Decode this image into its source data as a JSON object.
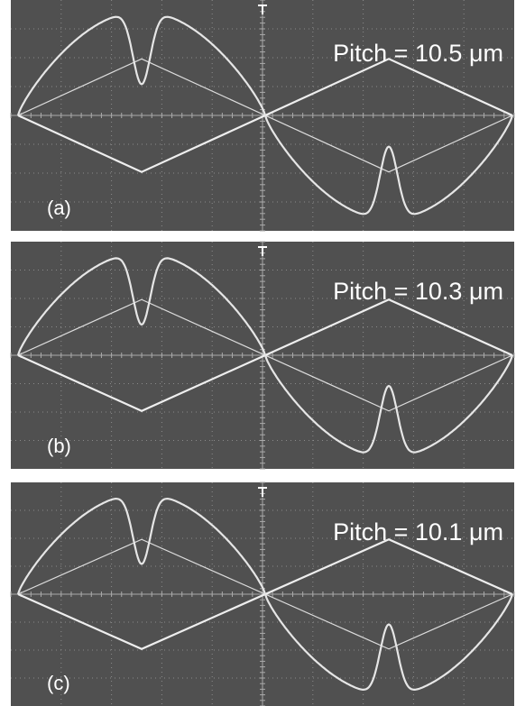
{
  "panels": [
    {
      "label": "(a)",
      "pitch": "Pitch = 10.5 μm"
    },
    {
      "label": "(b)",
      "pitch": "Pitch = 10.3 μm"
    },
    {
      "label": "(c)",
      "pitch": "Pitch = 10.1 μm"
    }
  ]
}
